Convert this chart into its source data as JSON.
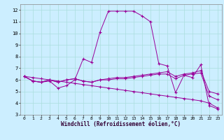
{
  "xlabel": "Windchill (Refroidissement éolien,°C)",
  "background_color": "#cceeff",
  "grid_color": "#aadddd",
  "line_color": "#990099",
  "xlim": [
    -0.5,
    23.5
  ],
  "ylim": [
    3,
    12.5
  ],
  "yticks": [
    3,
    4,
    5,
    6,
    7,
    8,
    9,
    10,
    11,
    12
  ],
  "xticks": [
    0,
    1,
    2,
    3,
    4,
    5,
    6,
    7,
    8,
    9,
    10,
    11,
    12,
    13,
    14,
    15,
    16,
    17,
    18,
    19,
    20,
    21,
    22,
    23
  ],
  "series": [
    {
      "x": [
        0,
        1,
        2,
        3,
        4,
        5,
        6,
        7,
        8,
        9,
        10,
        11,
        12,
        13,
        14,
        15,
        16,
        17,
        18,
        19,
        20,
        21,
        22,
        23
      ],
      "y": [
        6.3,
        5.9,
        5.8,
        5.9,
        5.3,
        5.5,
        6.0,
        7.8,
        7.5,
        10.1,
        11.9,
        11.9,
        11.9,
        11.9,
        11.5,
        11.0,
        7.4,
        7.2,
        4.9,
        6.4,
        6.2,
        7.3,
        3.8,
        3.5
      ]
    },
    {
      "x": [
        0,
        1,
        2,
        3,
        4,
        5,
        6,
        7,
        8,
        9,
        10,
        11,
        12,
        13,
        14,
        15,
        16,
        17,
        18,
        19,
        20,
        21,
        22,
        23
      ],
      "y": [
        6.3,
        5.9,
        5.8,
        6.0,
        5.8,
        6.0,
        6.1,
        5.9,
        5.8,
        6.0,
        6.1,
        6.2,
        6.2,
        6.3,
        6.4,
        6.5,
        6.6,
        6.7,
        6.3,
        6.5,
        6.6,
        6.8,
        5.0,
        4.8
      ]
    },
    {
      "x": [
        0,
        1,
        2,
        3,
        4,
        5,
        6,
        7,
        8,
        9,
        10,
        11,
        12,
        13,
        14,
        15,
        16,
        17,
        18,
        19,
        20,
        21,
        22,
        23
      ],
      "y": [
        6.3,
        5.9,
        5.8,
        6.0,
        5.8,
        6.0,
        6.1,
        5.9,
        5.8,
        6.0,
        6.0,
        6.1,
        6.1,
        6.2,
        6.3,
        6.4,
        6.5,
        6.5,
        6.1,
        6.4,
        6.5,
        6.6,
        4.6,
        4.3
      ]
    },
    {
      "x": [
        0,
        1,
        2,
        3,
        4,
        5,
        6,
        7,
        8,
        9,
        10,
        11,
        12,
        13,
        14,
        15,
        16,
        17,
        18,
        19,
        20,
        21,
        22,
        23
      ],
      "y": [
        6.3,
        6.2,
        6.1,
        6.0,
        5.9,
        5.8,
        5.7,
        5.6,
        5.5,
        5.4,
        5.3,
        5.2,
        5.1,
        5.0,
        4.9,
        4.8,
        4.7,
        4.6,
        4.5,
        4.4,
        4.3,
        4.2,
        4.0,
        3.6
      ]
    }
  ]
}
